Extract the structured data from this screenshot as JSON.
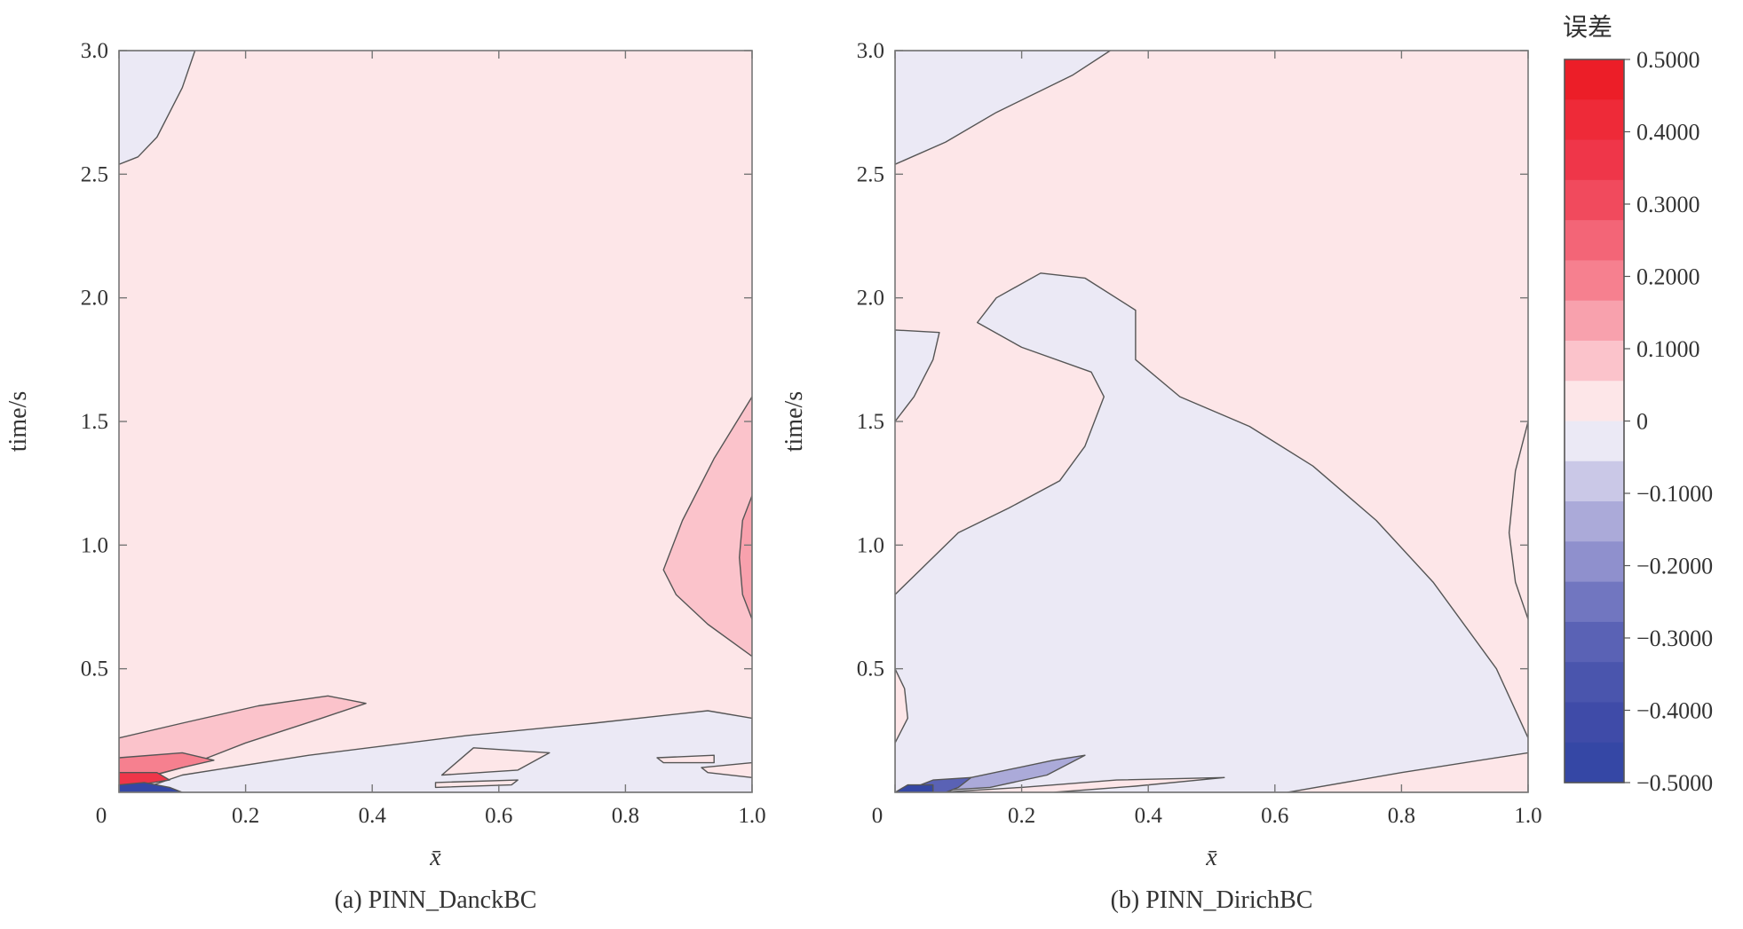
{
  "colorbar": {
    "title": "误差",
    "tick_labels": [
      "0.5000",
      "0.4000",
      "0.3000",
      "0.2000",
      "0.1000",
      "0",
      "−0.1000",
      "−0.2000",
      "−0.3000",
      "−0.4000",
      "−0.5000"
    ],
    "tick_values": [
      0.5,
      0.4,
      0.3,
      0.2,
      0.1,
      0,
      -0.1,
      -0.2,
      -0.3,
      -0.4,
      -0.5
    ],
    "colors": [
      "#ec1e28",
      "#ee2a38",
      "#ef3649",
      "#f14a5d",
      "#f36577",
      "#f6808f",
      "#f8a1ad",
      "#fbc3cb",
      "#fde6e8",
      "#ebe9f5",
      "#cac8e7",
      "#abaad9",
      "#8f90cd",
      "#7176c0",
      "#5a62b5",
      "#4a55ad",
      "#3f4ba8",
      "#3547a5"
    ]
  },
  "chart_data": [
    {
      "type": "heatmap",
      "title": "(a) PINN_DanckBC",
      "xlabel": "x̄",
      "ylabel": "time/s",
      "xlim": [
        0,
        1.0
      ],
      "ylim": [
        0,
        3.0
      ],
      "x_ticks": [
        0,
        0.2,
        0.4,
        0.6,
        0.8,
        1.0
      ],
      "x_tick_labels": [
        "0",
        "0.2",
        "0.4",
        "0.6",
        "0.8",
        "1.0"
      ],
      "y_ticks": [
        0.5,
        1.0,
        1.5,
        2.0,
        2.5,
        3.0
      ],
      "y_tick_labels": [
        "0.5",
        "1.0",
        "1.5",
        "2.0",
        "2.5",
        "3.0"
      ],
      "background_level": 0.02,
      "regions": [
        {
          "level": -0.05,
          "points": [
            [
              0,
              2.54
            ],
            [
              0,
              3.0
            ],
            [
              0.12,
              3.0
            ],
            [
              0.1,
              2.85
            ],
            [
              0.06,
              2.65
            ],
            [
              0.03,
              2.57
            ]
          ]
        },
        {
          "level": 0.08,
          "points": [
            [
              1.0,
              0.55
            ],
            [
              1.0,
              1.6
            ],
            [
              0.94,
              1.35
            ],
            [
              0.89,
              1.1
            ],
            [
              0.86,
              0.9
            ],
            [
              0.88,
              0.8
            ],
            [
              0.93,
              0.68
            ]
          ]
        },
        {
          "level": 0.14,
          "points": [
            [
              1.0,
              0.7
            ],
            [
              1.0,
              1.2
            ],
            [
              0.985,
              1.1
            ],
            [
              0.98,
              0.95
            ],
            [
              0.985,
              0.8
            ]
          ]
        },
        {
          "level": 0.08,
          "points": [
            [
              0,
              0.03
            ],
            [
              0,
              0.22
            ],
            [
              0.1,
              0.28
            ],
            [
              0.22,
              0.35
            ],
            [
              0.33,
              0.39
            ],
            [
              0.39,
              0.36
            ],
            [
              0.32,
              0.3
            ],
            [
              0.2,
              0.2
            ],
            [
              0.1,
              0.1
            ]
          ]
        },
        {
          "level": -0.05,
          "points": [
            [
              0.02,
              0.0
            ],
            [
              0.1,
              0.07
            ],
            [
              0.3,
              0.15
            ],
            [
              0.55,
              0.23
            ],
            [
              0.75,
              0.28
            ],
            [
              0.93,
              0.33
            ],
            [
              1.0,
              0.3
            ],
            [
              1.0,
              0.0
            ]
          ]
        },
        {
          "level": 0.02,
          "points": [
            [
              0.51,
              0.07
            ],
            [
              0.56,
              0.18
            ],
            [
              0.68,
              0.16
            ],
            [
              0.63,
              0.09
            ]
          ]
        },
        {
          "level": 0.03,
          "points": [
            [
              0.85,
              0.14
            ],
            [
              0.94,
              0.15
            ],
            [
              0.94,
              0.12
            ],
            [
              0.86,
              0.12
            ]
          ]
        },
        {
          "level": 0.03,
          "points": [
            [
              0.5,
              0.04
            ],
            [
              0.63,
              0.05
            ],
            [
              0.62,
              0.03
            ],
            [
              0.5,
              0.02
            ]
          ]
        },
        {
          "level": 0.03,
          "points": [
            [
              0.92,
              0.1
            ],
            [
              1.0,
              0.12
            ],
            [
              1.0,
              0.06
            ],
            [
              0.93,
              0.08
            ]
          ]
        },
        {
          "level": 0.2,
          "points": [
            [
              0,
              0.02
            ],
            [
              0,
              0.14
            ],
            [
              0.1,
              0.16
            ],
            [
              0.15,
              0.13
            ],
            [
              0.1,
              0.1
            ],
            [
              0.04,
              0.06
            ]
          ]
        },
        {
          "level": 0.35,
          "points": [
            [
              0,
              0.01
            ],
            [
              0,
              0.08
            ],
            [
              0.06,
              0.08
            ],
            [
              0.08,
              0.05
            ],
            [
              0.03,
              0.03
            ]
          ]
        },
        {
          "level": -0.45,
          "points": [
            [
              0,
              0.0
            ],
            [
              0,
              0.03
            ],
            [
              0.04,
              0.04
            ],
            [
              0.08,
              0.02
            ],
            [
              0.1,
              0.0
            ]
          ]
        }
      ]
    },
    {
      "type": "heatmap",
      "title": "(b) PINN_DirichBC",
      "xlabel": "x̄",
      "ylabel": "time/s",
      "xlim": [
        0,
        1.0
      ],
      "ylim": [
        0,
        3.0
      ],
      "x_ticks": [
        0,
        0.2,
        0.4,
        0.6,
        0.8,
        1.0
      ],
      "x_tick_labels": [
        "0",
        "0.2",
        "0.4",
        "0.6",
        "0.8",
        "1.0"
      ],
      "y_ticks": [
        0.5,
        1.0,
        1.5,
        2.0,
        2.5,
        3.0
      ],
      "y_tick_labels": [
        "0.5",
        "1.0",
        "1.5",
        "2.0",
        "2.5",
        "3.0"
      ],
      "background_level": 0.02,
      "regions": [
        {
          "level": -0.05,
          "points": [
            [
              0,
              2.54
            ],
            [
              0,
              3.0
            ],
            [
              0.34,
              3.0
            ],
            [
              0.28,
              2.9
            ],
            [
              0.16,
              2.75
            ],
            [
              0.08,
              2.63
            ]
          ]
        },
        {
          "level": -0.05,
          "points": [
            [
              0,
              1.5
            ],
            [
              0,
              1.87
            ],
            [
              0.07,
              1.86
            ],
            [
              0.06,
              1.75
            ],
            [
              0.03,
              1.6
            ]
          ]
        },
        {
          "level": -0.05,
          "points": [
            [
              0,
              0.0
            ],
            [
              0,
              0.8
            ],
            [
              0.04,
              0.9
            ],
            [
              0.1,
              1.05
            ],
            [
              0.18,
              1.15
            ],
            [
              0.26,
              1.26
            ],
            [
              0.3,
              1.4
            ],
            [
              0.33,
              1.6
            ],
            [
              0.31,
              1.7
            ],
            [
              0.2,
              1.8
            ],
            [
              0.13,
              1.9
            ],
            [
              0.16,
              2.0
            ],
            [
              0.23,
              2.1
            ],
            [
              0.3,
              2.08
            ],
            [
              0.38,
              1.95
            ],
            [
              0.38,
              1.75
            ],
            [
              0.45,
              1.6
            ],
            [
              0.56,
              1.48
            ],
            [
              0.66,
              1.32
            ],
            [
              0.76,
              1.1
            ],
            [
              0.85,
              0.85
            ],
            [
              0.95,
              0.5
            ],
            [
              1.0,
              0.22
            ],
            [
              1.0,
              0.0
            ]
          ]
        },
        {
          "level": 0.05,
          "points": [
            [
              0,
              0.5
            ],
            [
              0,
              0.2
            ],
            [
              0.02,
              0.3
            ],
            [
              0.015,
              0.42
            ]
          ]
        },
        {
          "level": 0.04,
          "points": [
            [
              1.0,
              0.7
            ],
            [
              1.0,
              1.5
            ],
            [
              0.98,
              1.3
            ],
            [
              0.97,
              1.05
            ],
            [
              0.98,
              0.85
            ]
          ]
        },
        {
          "level": 0.02,
          "points": [
            [
              0.07,
              0.0
            ],
            [
              0.2,
              0.02
            ],
            [
              0.35,
              0.05
            ],
            [
              0.52,
              0.06
            ],
            [
              0.38,
              0.025
            ],
            [
              0.25,
              0.0
            ]
          ]
        },
        {
          "level": 0.02,
          "points": [
            [
              0.62,
              0.0
            ],
            [
              0.8,
              0.08
            ],
            [
              1.0,
              0.16
            ],
            [
              1.0,
              0.0
            ]
          ]
        },
        {
          "level": -0.15,
          "points": [
            [
              0.02,
              0.0
            ],
            [
              0.12,
              0.06
            ],
            [
              0.25,
              0.13
            ],
            [
              0.3,
              0.15
            ],
            [
              0.24,
              0.07
            ],
            [
              0.15,
              0.02
            ]
          ]
        },
        {
          "level": -0.3,
          "points": [
            [
              0.01,
              0.0
            ],
            [
              0.06,
              0.05
            ],
            [
              0.12,
              0.06
            ],
            [
              0.1,
              0.02
            ],
            [
              0.08,
              0.0
            ]
          ]
        },
        {
          "level": -0.45,
          "points": [
            [
              0,
              0.0
            ],
            [
              0.02,
              0.03
            ],
            [
              0.06,
              0.03
            ],
            [
              0.06,
              0.0
            ]
          ]
        }
      ]
    }
  ]
}
